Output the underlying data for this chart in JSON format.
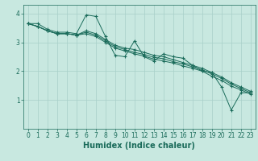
{
  "title": "",
  "xlabel": "Humidex (Indice chaleur)",
  "xlim": [
    -0.5,
    23.5
  ],
  "ylim": [
    0,
    4.3
  ],
  "yticks": [
    1,
    2,
    3,
    4
  ],
  "xticks": [
    0,
    1,
    2,
    3,
    4,
    5,
    6,
    7,
    8,
    9,
    10,
    11,
    12,
    13,
    14,
    15,
    16,
    17,
    18,
    19,
    20,
    21,
    22,
    23
  ],
  "bg_color": "#c8e8e0",
  "line_color": "#1a6b5a",
  "grid_color": "#a8cfc8",
  "lines": [
    [
      3.65,
      3.65,
      3.45,
      3.35,
      3.35,
      3.3,
      3.95,
      3.9,
      3.2,
      2.55,
      2.5,
      3.05,
      2.5,
      2.35,
      2.6,
      2.5,
      2.45,
      2.2,
      2.0,
      1.95,
      1.45,
      0.65,
      1.25,
      1.25
    ],
    [
      3.65,
      3.55,
      3.4,
      3.3,
      3.3,
      3.25,
      3.4,
      3.3,
      3.1,
      2.9,
      2.8,
      2.75,
      2.65,
      2.55,
      2.5,
      2.4,
      2.3,
      2.2,
      2.1,
      1.95,
      1.8,
      1.6,
      1.45,
      1.3
    ],
    [
      3.65,
      3.55,
      3.4,
      3.3,
      3.3,
      3.25,
      3.35,
      3.25,
      3.05,
      2.85,
      2.75,
      2.65,
      2.58,
      2.48,
      2.43,
      2.33,
      2.25,
      2.15,
      2.05,
      1.9,
      1.75,
      1.55,
      1.4,
      1.25
    ],
    [
      3.65,
      3.55,
      3.4,
      3.3,
      3.3,
      3.25,
      3.3,
      3.2,
      3.0,
      2.8,
      2.7,
      2.6,
      2.52,
      2.42,
      2.35,
      2.28,
      2.18,
      2.1,
      2.0,
      1.82,
      1.68,
      1.48,
      1.35,
      1.2
    ]
  ],
  "marker": "+",
  "markersize": 3.5,
  "linewidth": 0.7,
  "tick_fontsize": 5.5,
  "xlabel_fontsize": 7.0
}
